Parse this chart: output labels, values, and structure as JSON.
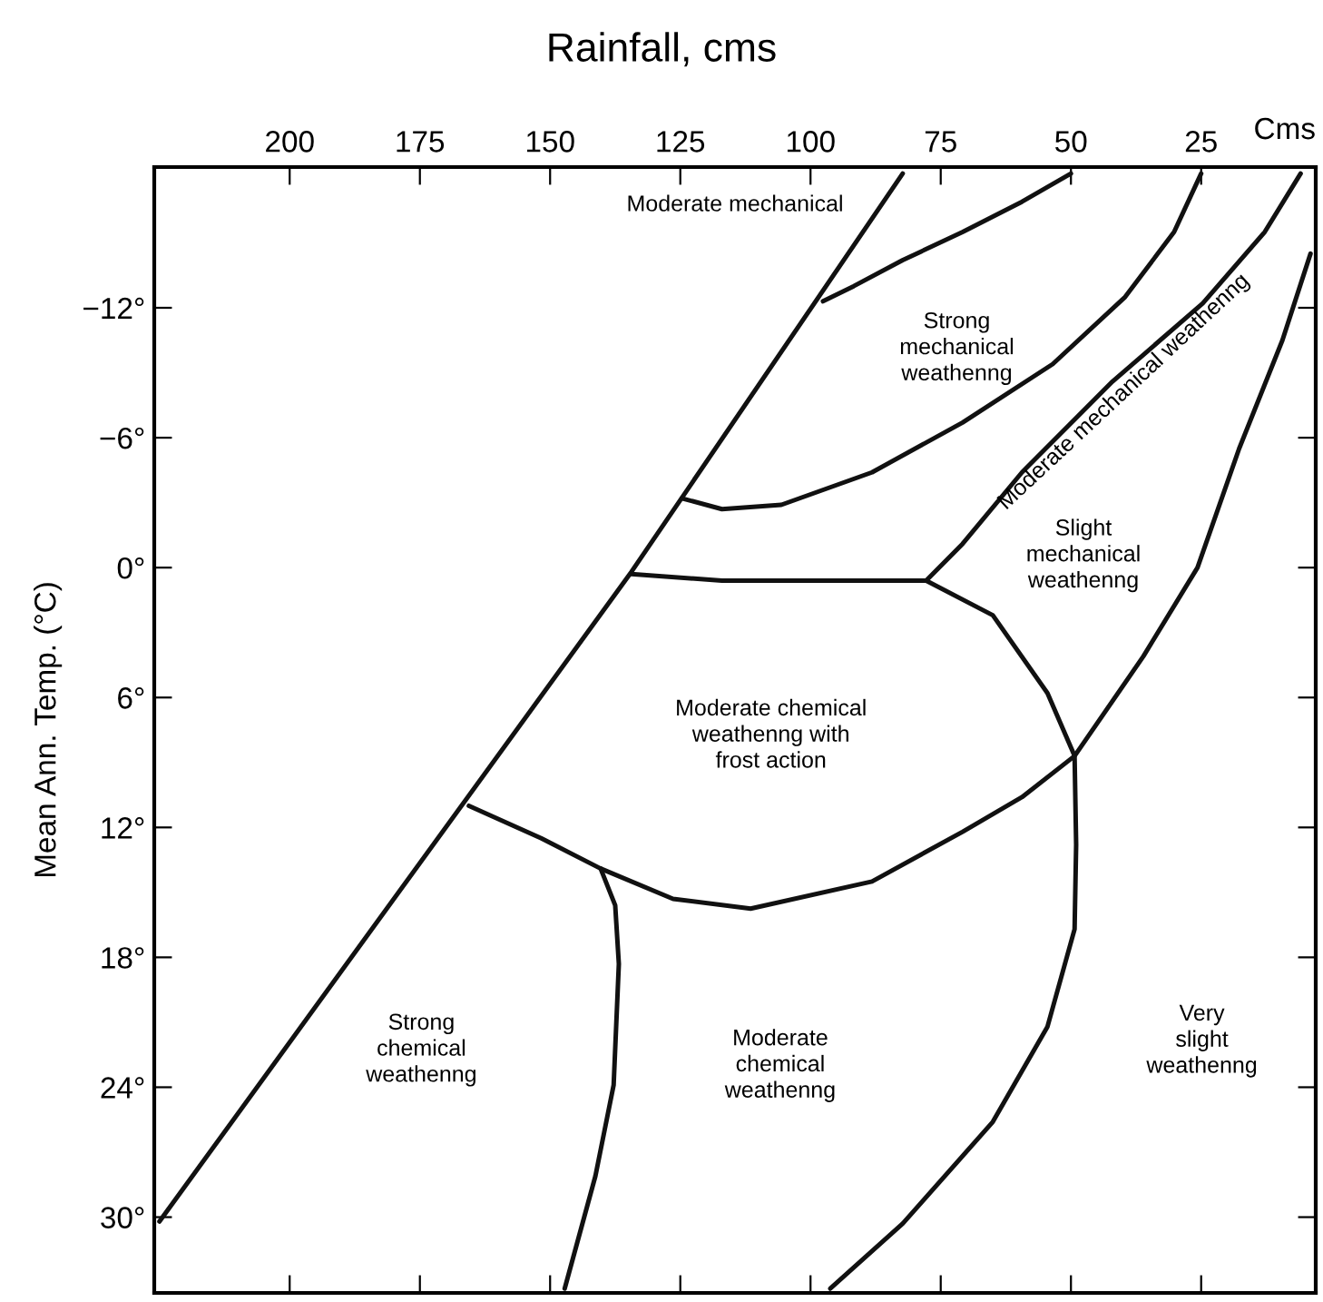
{
  "chart_data": {
    "type": "line",
    "title": "Rainfall, cms",
    "ylabel": "Mean Ann. Temp. (°C)",
    "xlim": [
      226,
      3
    ],
    "ylim": [
      33.5,
      -18.5
    ],
    "xticks": [
      200,
      175,
      150,
      125,
      100,
      75,
      50,
      25
    ],
    "yticks": [
      {
        "value": -12,
        "label": "−12°"
      },
      {
        "value": -6,
        "label": "−6°"
      },
      {
        "value": 0,
        "label": "0°"
      },
      {
        "value": 6,
        "label": "6°"
      },
      {
        "value": 12,
        "label": "12°"
      },
      {
        "value": 18,
        "label": "18°"
      },
      {
        "value": 24,
        "label": "24°"
      },
      {
        "value": 30,
        "label": "30°"
      }
    ],
    "grid": false,
    "legend": false,
    "marker": "none",
    "line_style": "solid",
    "series": [
      {
        "color": "#111111",
        "x": [
          225,
          134.4,
          82.3
        ],
        "values": [
          30.2,
          0.2,
          -18.2
        ]
      },
      {
        "color": "#111111",
        "x": [
          97.6,
          91.7,
          82.3,
          70.8,
          59.4,
          50
        ],
        "values": [
          -12.3,
          -13,
          -14.2,
          -15.5,
          -16.9,
          -18.2
        ]
      },
      {
        "color": "#111111",
        "x": [
          124.7,
          117,
          105.6,
          88.2,
          70.8,
          53.5,
          39.6,
          30.2,
          25
        ],
        "values": [
          -3.2,
          -2.7,
          -2.9,
          -4.4,
          -6.7,
          -9.4,
          -12.5,
          -15.5,
          -18.2
        ]
      },
      {
        "color": "#111111",
        "x": [
          77.8,
          70.8,
          59.4,
          42,
          24.7,
          12.8,
          5.9
        ],
        "values": [
          0.6,
          -1.1,
          -4.4,
          -8.6,
          -12.2,
          -15.5,
          -18.2
        ]
      },
      {
        "color": "#111111",
        "x": [
          4,
          9.4,
          17.7,
          25.7,
          36.1,
          49.3,
          59.4,
          70.8,
          88.2,
          111.5,
          126.4,
          140.3,
          151.7,
          165.6
        ],
        "values": [
          -14.5,
          -10.5,
          -5.5,
          0,
          4.1,
          8.7,
          10.6,
          12.2,
          14.5,
          15.75,
          15.3,
          13.9,
          12.5,
          11
        ]
      },
      {
        "color": "#111111",
        "x": [
          134.4,
          117,
          77.8,
          65,
          54.5,
          49.3,
          49,
          49.3,
          54.5,
          65,
          82.3,
          96.2
        ],
        "values": [
          0.3,
          0.6,
          0.6,
          2.2,
          5.8,
          8.7,
          12.8,
          16.7,
          21.2,
          25.6,
          30.3,
          33.3
        ]
      },
      {
        "color": "#111111",
        "x": [
          140.3,
          137.5,
          136.8,
          137.8,
          141.3,
          147.2
        ],
        "values": [
          13.9,
          15.6,
          18.3,
          23.9,
          28.1,
          33.3
        ]
      }
    ],
    "annotations": [
      "Cms",
      "Moderate mechanical",
      "Strong\nmechanical\nweathenng",
      "Moderate mechanical weathenng",
      "Slight\nmechanical\nweathenng",
      "Moderate chemical\nweathenng with\nfrost action",
      "Strong\nchemical\nweathenng",
      "Moderate\nchemical\nweathenng",
      "Very\nslight\nweathenng"
    ]
  }
}
